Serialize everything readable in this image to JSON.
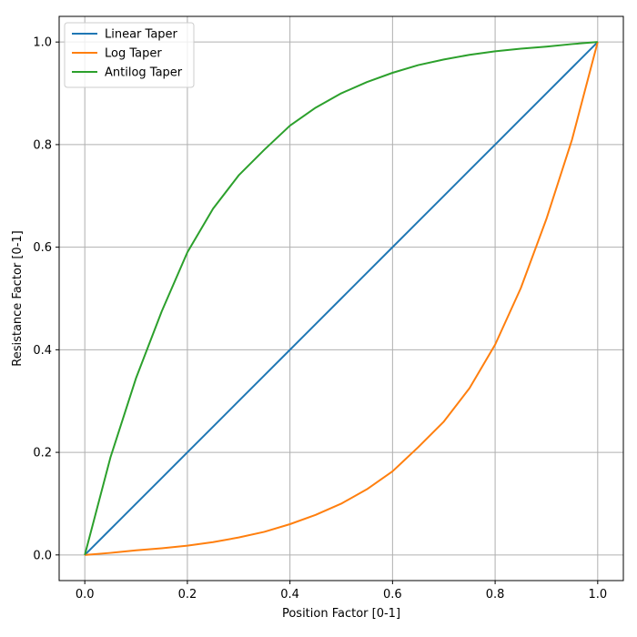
{
  "chart_data": {
    "type": "line",
    "title": "",
    "xlabel": "Position Factor [0-1]",
    "ylabel": "Resistance Factor [0-1]",
    "xlim": [
      -0.05,
      1.05
    ],
    "ylim": [
      -0.05,
      1.05
    ],
    "xticks": [
      "0.0",
      "0.2",
      "0.4",
      "0.6",
      "0.8",
      "1.0"
    ],
    "yticks": [
      "0.0",
      "0.2",
      "0.4",
      "0.6",
      "0.8",
      "1.0"
    ],
    "grid": true,
    "legend_position": "top-left",
    "x": [
      0.0,
      0.05,
      0.1,
      0.15,
      0.2,
      0.25,
      0.3,
      0.35,
      0.4,
      0.45,
      0.5,
      0.55,
      0.6,
      0.65,
      0.7,
      0.75,
      0.8,
      0.85,
      0.9,
      0.95,
      1.0
    ],
    "series": [
      {
        "name": "Linear Taper",
        "color": "#1f77b4",
        "values": [
          0.0,
          0.05,
          0.1,
          0.15,
          0.2,
          0.25,
          0.3,
          0.35,
          0.4,
          0.45,
          0.5,
          0.55,
          0.6,
          0.65,
          0.7,
          0.75,
          0.8,
          0.85,
          0.9,
          0.95,
          1.0
        ]
      },
      {
        "name": "Log Taper",
        "color": "#ff7f0e",
        "values": [
          0.0,
          0.004,
          0.009,
          0.013,
          0.018,
          0.025,
          0.034,
          0.045,
          0.06,
          0.078,
          0.1,
          0.128,
          0.163,
          0.21,
          0.26,
          0.325,
          0.41,
          0.52,
          0.655,
          0.81,
          1.0
        ]
      },
      {
        "name": "Antilog Taper",
        "color": "#2ca02c",
        "values": [
          0.0,
          0.19,
          0.345,
          0.475,
          0.59,
          0.675,
          0.74,
          0.79,
          0.837,
          0.872,
          0.9,
          0.922,
          0.94,
          0.955,
          0.966,
          0.975,
          0.982,
          0.987,
          0.991,
          0.996,
          1.0
        ]
      }
    ]
  }
}
